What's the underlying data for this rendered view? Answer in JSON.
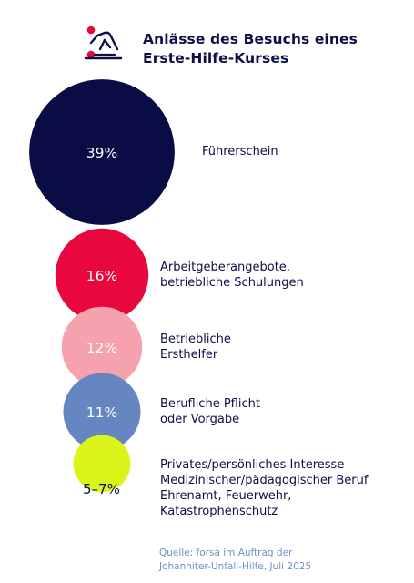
{
  "header": {
    "title_line1": "Anlässe des Besuchs eines",
    "title_line2": "Erste-Hilfe-Kurses",
    "icon": "first-aid-cpr-icon"
  },
  "colors": {
    "navy": "#0a0d45",
    "red": "#e8083e",
    "pink": "#f6a1ae",
    "blue": "#6686c2",
    "lime": "#d9f51a",
    "source": "#6a92c8"
  },
  "chart_data": {
    "type": "bubble",
    "title": "Anlässe des Besuchs eines Erste-Hilfe-Kurses",
    "items": [
      {
        "value_label": "39%",
        "value": 39,
        "label_lines": [
          "Führerschein"
        ],
        "color": "#0a0d45"
      },
      {
        "value_label": "16%",
        "value": 16,
        "label_lines": [
          "Arbeitgeberangebote,",
          "betriebliche Schulungen"
        ],
        "color": "#e8083e"
      },
      {
        "value_label": "12%",
        "value": 12,
        "label_lines": [
          "Betriebliche",
          "Ersthelfer"
        ],
        "color": "#f6a1ae"
      },
      {
        "value_label": "11%",
        "value": 11,
        "label_lines": [
          "Berufliche Pflicht",
          "oder Vorgabe"
        ],
        "color": "#6686c2"
      },
      {
        "value_label": "5–7%",
        "value": 6,
        "label_lines": [
          "Privates/persönliches Interesse",
          "Medizinischer/pädagogischer Beruf",
          "Ehrenamt, Feuerwehr,",
          "Katastrophenschutz"
        ],
        "color": "#d9f51a"
      }
    ]
  },
  "source": {
    "line1": "Quelle: forsa im Auftrag der",
    "line2": "Johanniter-Unfall-Hilfe, Juli 2025"
  }
}
